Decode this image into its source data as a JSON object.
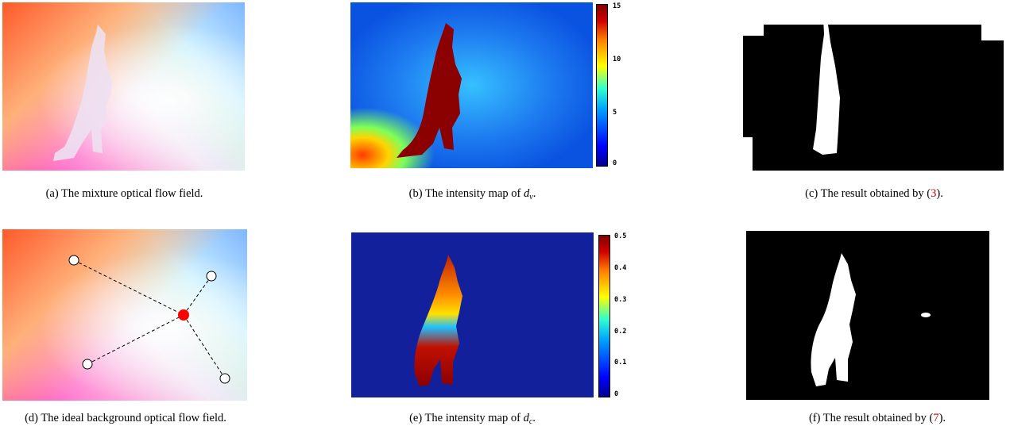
{
  "captions": {
    "a": "(a) The mixture optical flow field.",
    "b_prefix": "(b) The intensity map of ",
    "b_var": "d",
    "b_sub": "v",
    "c_prefix": "(c) The result obtained by (",
    "c_ref": "3",
    "c_suffix": ").",
    "d": "(d) The ideal background optical flow field.",
    "e_prefix": "(e) The intensity map of ",
    "e_var": "d",
    "e_sub": "c",
    "f_prefix": "(f) The result obtained by (",
    "f_ref": "7",
    "f_suffix": ")."
  },
  "colorbar_b": {
    "ticks": [
      "15",
      "10",
      "5",
      "0"
    ]
  },
  "colorbar_e": {
    "ticks": [
      "0.5",
      "0.4",
      "0.3",
      "0.2",
      "0.1",
      "0"
    ]
  },
  "colors": {
    "reference": "#c00000",
    "center_point": "#ff0000",
    "background": "#ffffff"
  }
}
